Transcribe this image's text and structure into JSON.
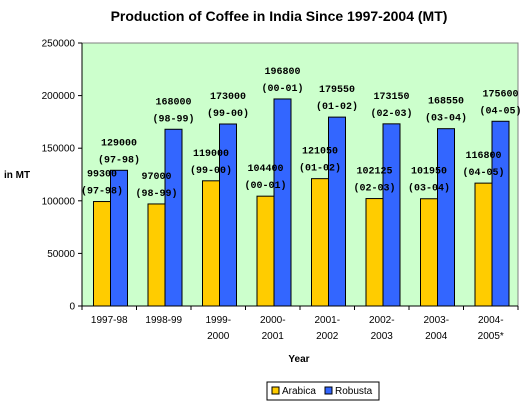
{
  "chart_data": {
    "type": "bar",
    "title": "Production of Coffee in India Since 1997-2004 (MT)",
    "xlabel": "Year",
    "ylabel": "in MT",
    "ylim": [
      0,
      250000
    ],
    "yticks": [
      "0",
      "50000",
      "100000",
      "150000",
      "200000",
      "250000"
    ],
    "categories": [
      [
        "1997-98"
      ],
      [
        "1998-99"
      ],
      [
        "1999-",
        "2000"
      ],
      [
        "2000-",
        "2001"
      ],
      [
        "2001-",
        "2002"
      ],
      [
        "2002-",
        "2003"
      ],
      [
        "2003-",
        "2004"
      ],
      [
        "2004-",
        "2005*"
      ]
    ],
    "series": [
      {
        "name": "Arabica",
        "color": "#ffcc00",
        "values": [
          99300,
          97000,
          119000,
          104400,
          121050,
          102125,
          101950,
          116800
        ],
        "labels": [
          [
            "99300",
            "(97-98)"
          ],
          [
            "97000",
            "(98-99)"
          ],
          [
            "119000",
            "(99-00)"
          ],
          [
            "104400",
            "(00-01)"
          ],
          [
            "121050",
            "(01-02)"
          ],
          [
            "102125",
            "(02-03)"
          ],
          [
            "101950",
            "(03-04)"
          ],
          [
            "116800",
            "(04-05)"
          ]
        ]
      },
      {
        "name": "Robusta",
        "color": "#3366ff",
        "values": [
          129000,
          168000,
          173000,
          196800,
          179550,
          173150,
          168550,
          175600
        ],
        "labels": [
          [
            "129000",
            "(97-98)"
          ],
          [
            "168000",
            "(98-99)"
          ],
          [
            "173000",
            "(99-00)"
          ],
          [
            "196800",
            "(00-01)"
          ],
          [
            "179550",
            "(01-02)"
          ],
          [
            "173150",
            "(02-03)"
          ],
          [
            "168550",
            "(03-04)"
          ],
          [
            "175600",
            "(04-05)"
          ]
        ]
      }
    ],
    "plot_background": "#ccffcc",
    "grid": false,
    "legend_position": "bottom"
  }
}
